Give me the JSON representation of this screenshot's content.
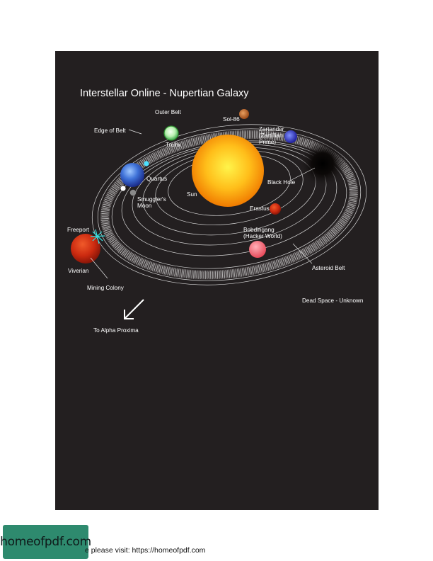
{
  "title": "Interstellar Online - Nupertian Galaxy",
  "labels": {
    "outer_belt": "Outer Belt",
    "sol86": "Sol-86",
    "edge_of_belt": "Edge of Belt",
    "zartander_1": "Zartander",
    "zartander_2": "(Zartillian",
    "zartander_3": "Prime)",
    "trellix": "Trellix",
    "quartus": "Quartus",
    "sun": "Sun",
    "smuggler_1": "Smuggler's",
    "smuggler_2": "Moon",
    "black_hole": "Black Hole",
    "erastus": "Erastus",
    "freeport": "Freeport",
    "bobdingang_1": "Bobdingang",
    "bobdingang_2": "(Hacker World)",
    "viverian": "Viverian",
    "asteroid_belt": "Asteroid Belt",
    "mining_colony": "Mining Colony",
    "dead_space": "Dead Space - Unknown",
    "to_alpha": "To Alpha Proxima"
  },
  "footer": {
    "text": "e please visit: https://homeofpdf.com",
    "logo": "homeofpdf.com"
  },
  "colors": {
    "background": "#231f20",
    "sun": "#ffb000",
    "accent_teal": "#2e8a6e"
  }
}
